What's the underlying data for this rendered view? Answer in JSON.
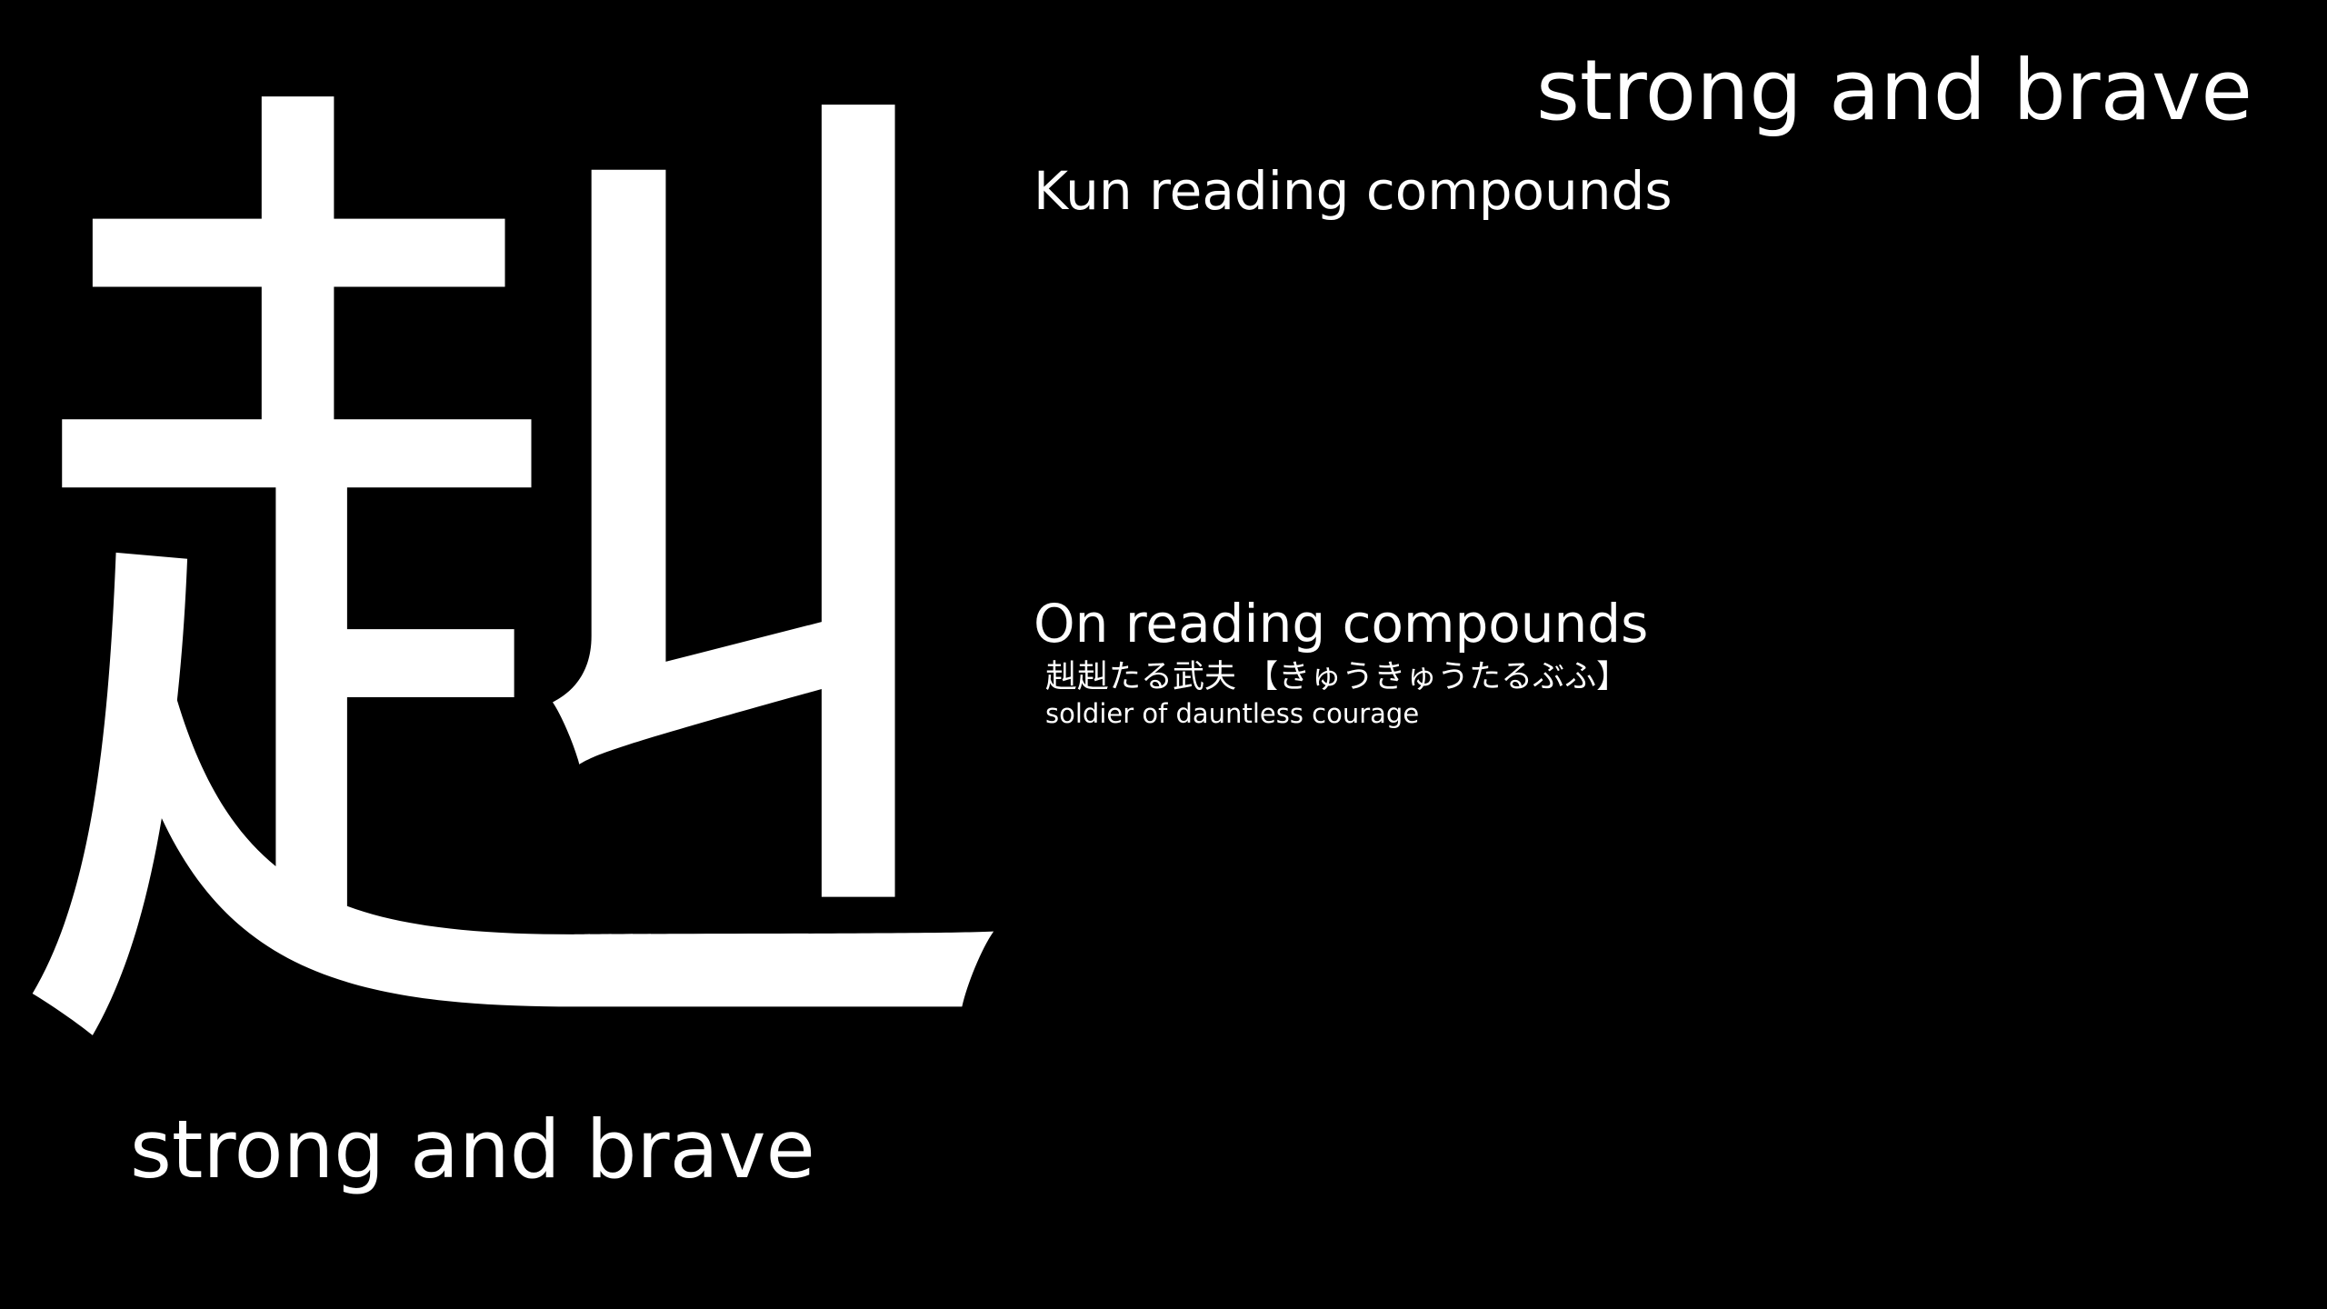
{
  "kanji": {
    "character": "赳"
  },
  "meaning": {
    "top": "strong and brave",
    "bottom": "strong and brave"
  },
  "kun_reading": {
    "heading": "Kun reading compounds",
    "compounds": []
  },
  "on_reading": {
    "heading": "On reading compounds",
    "compounds": [
      {
        "word": "赳赳たる武夫 【きゅうきゅうたるぶふ】",
        "gloss": "soldier of dauntless courage"
      }
    ]
  },
  "colors": {
    "background": "#000000",
    "text": "#ffffff"
  }
}
